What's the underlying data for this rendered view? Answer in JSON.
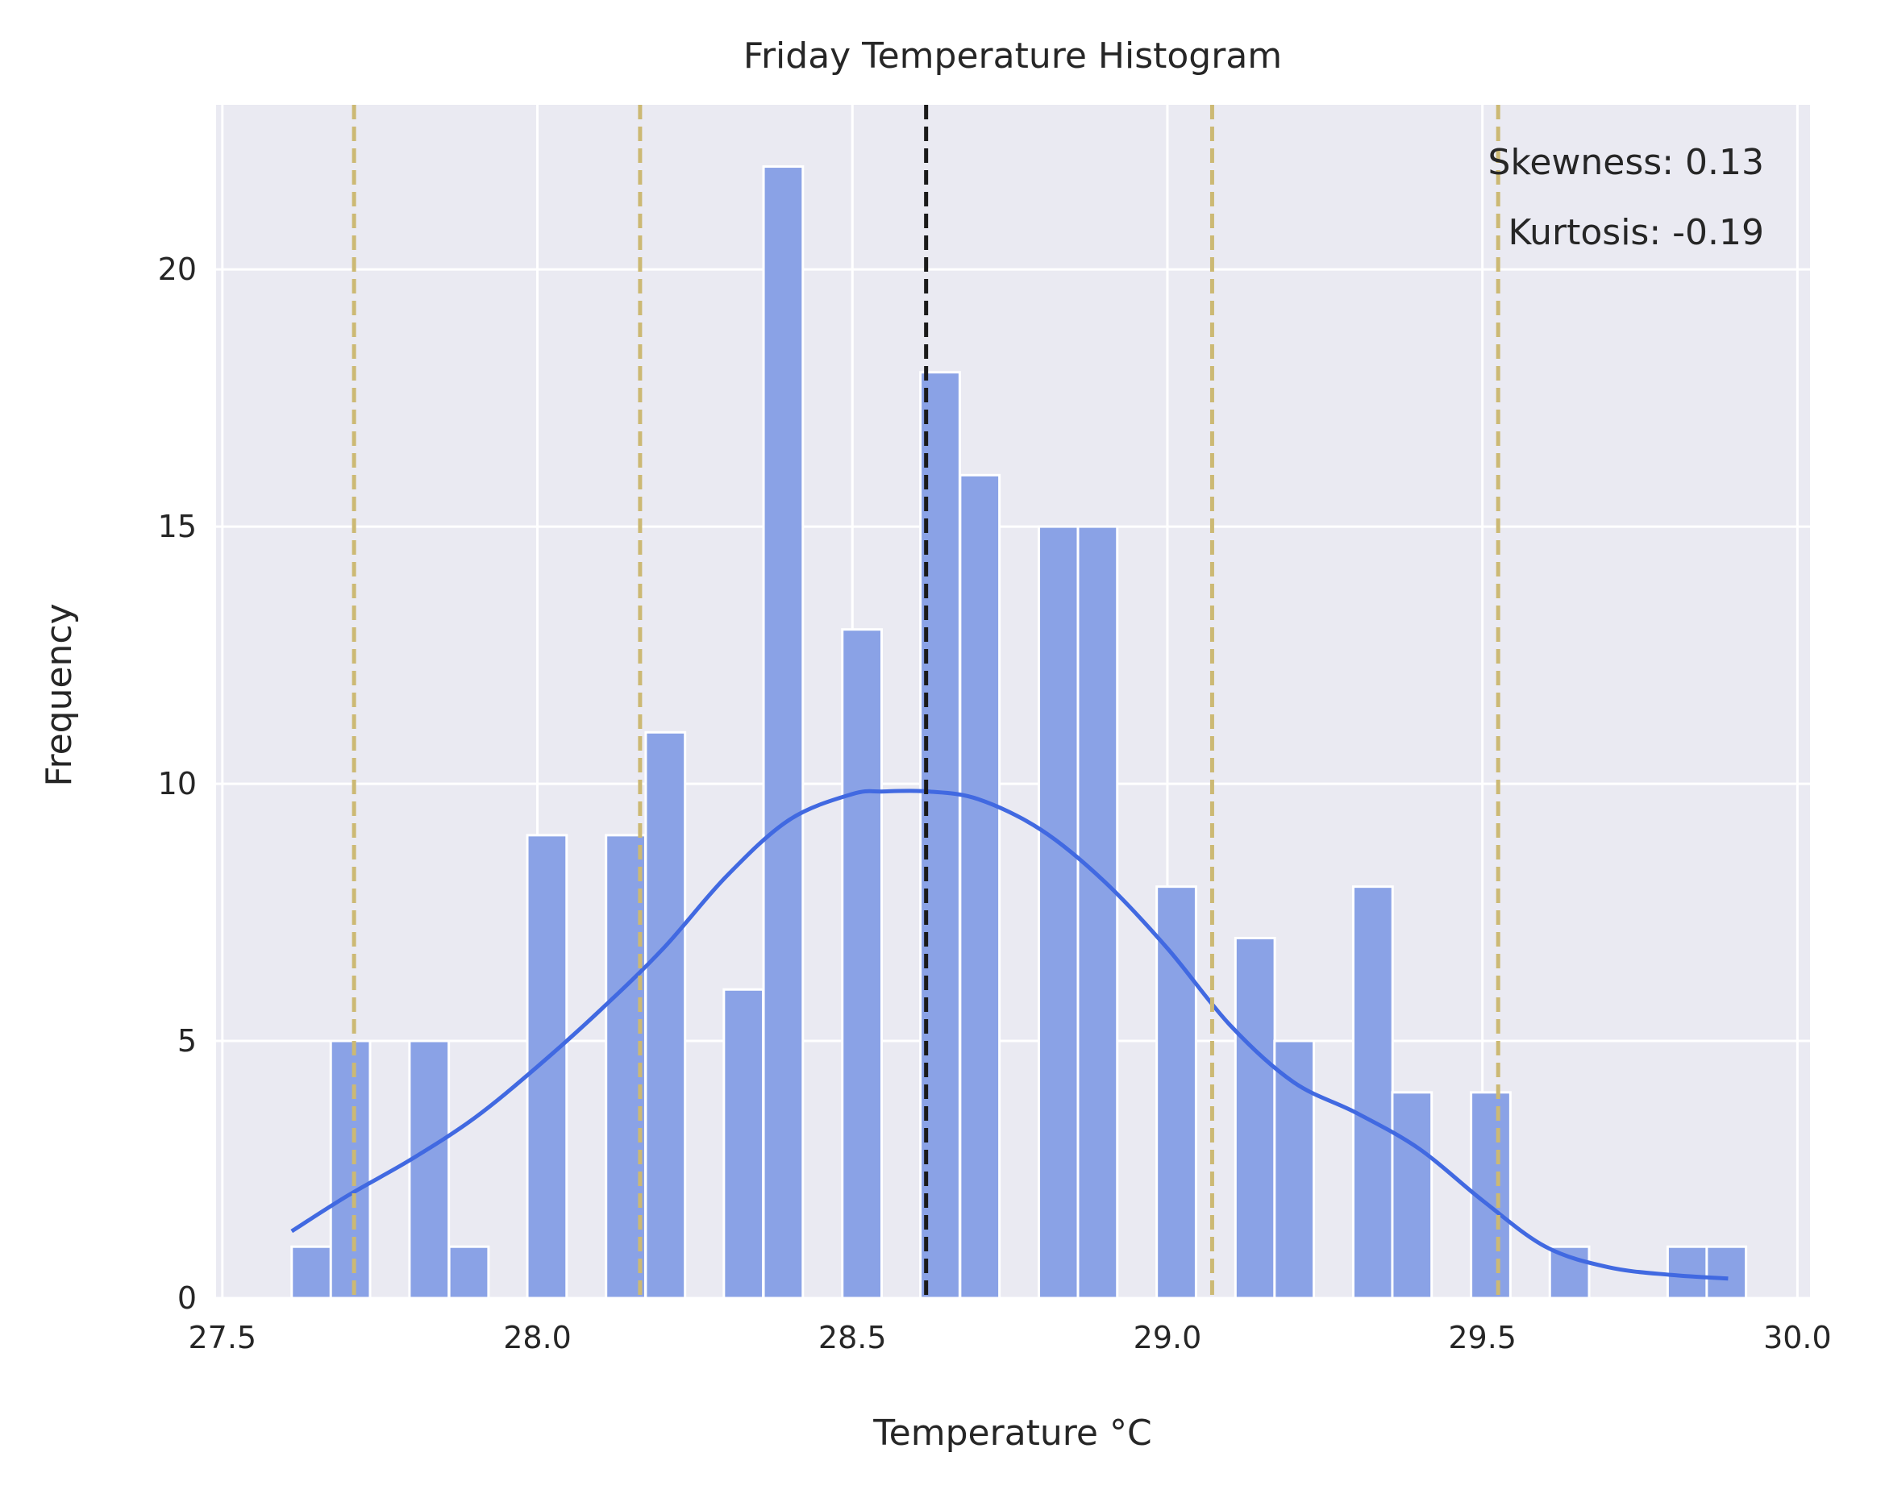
{
  "chart_data": {
    "type": "bar",
    "title": "Friday Temperature Histogram",
    "xlabel": "Temperature °C",
    "ylabel": "Frequency",
    "xlim": [
      27.49,
      30.02
    ],
    "ylim": [
      0,
      23.2
    ],
    "x_ticks": [
      "27.5",
      "28.0",
      "28.5",
      "29.0",
      "29.5",
      "30.0"
    ],
    "x_tick_values": [
      27.5,
      28.0,
      28.5,
      29.0,
      29.5,
      30.0
    ],
    "y_ticks": [
      "0",
      "5",
      "10",
      "15",
      "20"
    ],
    "y_tick_values": [
      0,
      5,
      10,
      15,
      20
    ],
    "grid": true,
    "bin_width": 0.0624,
    "bins": [
      {
        "x0": 27.61,
        "count": 1
      },
      {
        "x0": 27.672,
        "count": 5
      },
      {
        "x0": 27.735,
        "count": 0
      },
      {
        "x0": 27.797,
        "count": 5
      },
      {
        "x0": 27.86,
        "count": 1
      },
      {
        "x0": 27.922,
        "count": 0
      },
      {
        "x0": 27.984,
        "count": 9
      },
      {
        "x0": 28.047,
        "count": 0
      },
      {
        "x0": 28.109,
        "count": 9
      },
      {
        "x0": 28.172,
        "count": 11
      },
      {
        "x0": 28.234,
        "count": 0
      },
      {
        "x0": 28.296,
        "count": 6
      },
      {
        "x0": 28.359,
        "count": 22
      },
      {
        "x0": 28.421,
        "count": 0
      },
      {
        "x0": 28.484,
        "count": 13
      },
      {
        "x0": 28.546,
        "count": 0
      },
      {
        "x0": 28.608,
        "count": 18
      },
      {
        "x0": 28.671,
        "count": 16
      },
      {
        "x0": 28.733,
        "count": 0
      },
      {
        "x0": 28.796,
        "count": 15
      },
      {
        "x0": 28.858,
        "count": 15
      },
      {
        "x0": 28.92,
        "count": 0
      },
      {
        "x0": 28.983,
        "count": 8
      },
      {
        "x0": 29.045,
        "count": 0
      },
      {
        "x0": 29.108,
        "count": 7
      },
      {
        "x0": 29.17,
        "count": 5
      },
      {
        "x0": 29.232,
        "count": 0
      },
      {
        "x0": 29.295,
        "count": 8
      },
      {
        "x0": 29.357,
        "count": 4
      },
      {
        "x0": 29.42,
        "count": 0
      },
      {
        "x0": 29.482,
        "count": 4
      },
      {
        "x0": 29.544,
        "count": 0
      },
      {
        "x0": 29.607,
        "count": 1
      },
      {
        "x0": 29.669,
        "count": 0
      },
      {
        "x0": 29.732,
        "count": 0
      },
      {
        "x0": 29.794,
        "count": 1
      },
      {
        "x0": 29.856,
        "count": 1
      }
    ],
    "kde": {
      "x": [
        27.61,
        27.7,
        27.8,
        27.9,
        28.0,
        28.1,
        28.2,
        28.3,
        28.4,
        28.5,
        28.55,
        28.62,
        28.7,
        28.8,
        28.9,
        29.0,
        29.1,
        29.2,
        29.3,
        29.4,
        29.5,
        29.6,
        29.7,
        29.8,
        29.89
      ],
      "y": [
        1.3,
        2.0,
        2.7,
        3.5,
        4.5,
        5.6,
        6.8,
        8.2,
        9.3,
        9.8,
        9.85,
        9.85,
        9.7,
        9.1,
        8.1,
        6.8,
        5.3,
        4.2,
        3.6,
        2.9,
        1.9,
        1.0,
        0.6,
        0.45,
        0.38
      ]
    },
    "vlines": [
      {
        "x": 28.617,
        "color": "#1a1a1a",
        "role": "mean"
      },
      {
        "x": 27.709,
        "color": "#ccb974",
        "role": "band"
      },
      {
        "x": 28.163,
        "color": "#ccb974",
        "role": "band"
      },
      {
        "x": 29.071,
        "color": "#ccb974",
        "role": "band"
      },
      {
        "x": 29.525,
        "color": "#ccb974",
        "role": "band"
      }
    ],
    "annotations": [
      "Skewness: 0.13",
      "Kurtosis: -0.19"
    ],
    "colors": {
      "bar_fill": "#8aa2e6",
      "bar_edge": "#ffffff",
      "kde_line": "#4169e1",
      "plot_background": "#eaeaf2",
      "grid": "#ffffff"
    }
  }
}
